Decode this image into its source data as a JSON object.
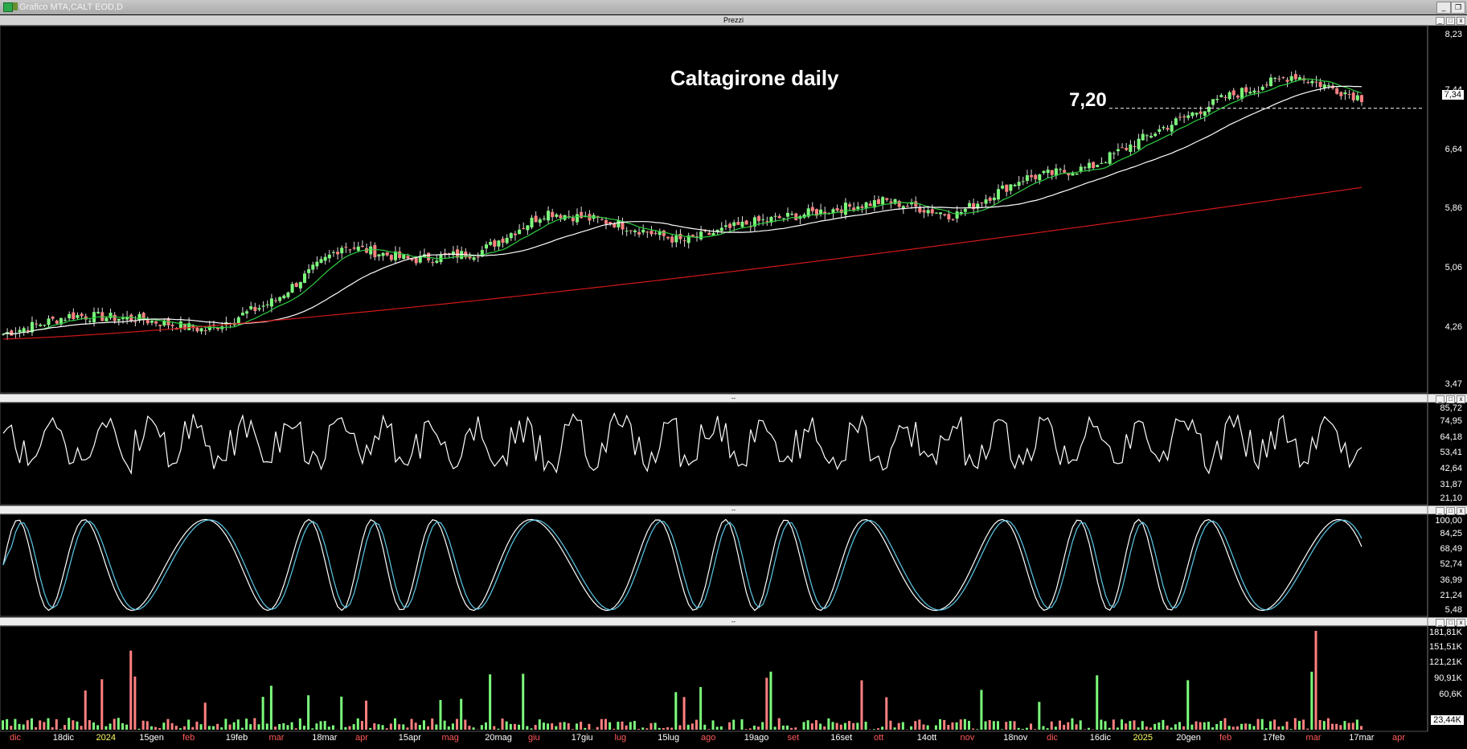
{
  "window": {
    "title": "Grafico MTA,CALT EOD,D"
  },
  "prezzi_panel": {
    "label": "Prezzi",
    "annotation_title": "Caltagirone daily",
    "annotation_level": "7,20",
    "last_price_tag": "7,34",
    "y_ticks": [
      "8,23",
      "7,44",
      "6,64",
      "5,86",
      "5,06",
      "4,26",
      "3,47"
    ]
  },
  "rsi_panel": {
    "separator": "--",
    "y_ticks": [
      "85,72",
      "74,95",
      "64,18",
      "53,41",
      "42,64",
      "31,87",
      "21,10"
    ]
  },
  "stoch_panel": {
    "separator": "--",
    "y_ticks": [
      "100,00",
      "84,25",
      "68,49",
      "52,74",
      "36,99",
      "21,24",
      "5,48"
    ]
  },
  "volume_panel": {
    "separator": "--",
    "y_ticks": [
      "181,81K",
      "151,51K",
      "121,21K",
      "90,91K",
      "60,6K"
    ],
    "last_volume_tag": "23,44K"
  },
  "x_axis": [
    {
      "label": "dic",
      "color": "#ff5a5a"
    },
    {
      "label": "18dic",
      "color": "#ffffff"
    },
    {
      "label": "2024",
      "color": "#ffff66"
    },
    {
      "label": "15gen",
      "color": "#ffffff"
    },
    {
      "label": "feb",
      "color": "#ff5a5a"
    },
    {
      "label": "19feb",
      "color": "#ffffff"
    },
    {
      "label": "mar",
      "color": "#ff5a5a"
    },
    {
      "label": "18mar",
      "color": "#ffffff"
    },
    {
      "label": "apr",
      "color": "#ff5a5a"
    },
    {
      "label": "15apr",
      "color": "#ffffff"
    },
    {
      "label": "mag",
      "color": "#ff5a5a"
    },
    {
      "label": "20mag",
      "color": "#ffffff"
    },
    {
      "label": "giu",
      "color": "#ff5a5a"
    },
    {
      "label": "17giu",
      "color": "#ffffff"
    },
    {
      "label": "lug",
      "color": "#ff5a5a"
    },
    {
      "label": "15lug",
      "color": "#ffffff"
    },
    {
      "label": "ago",
      "color": "#ff5a5a"
    },
    {
      "label": "19ago",
      "color": "#ffffff"
    },
    {
      "label": "set",
      "color": "#ff5a5a"
    },
    {
      "label": "16set",
      "color": "#ffffff"
    },
    {
      "label": "ott",
      "color": "#ff5a5a"
    },
    {
      "label": "14ott",
      "color": "#ffffff"
    },
    {
      "label": "nov",
      "color": "#ff5a5a"
    },
    {
      "label": "18nov",
      "color": "#ffffff"
    },
    {
      "label": "dic",
      "color": "#ff5a5a"
    },
    {
      "label": "16dic",
      "color": "#ffffff"
    },
    {
      "label": "2025",
      "color": "#ffff66"
    },
    {
      "label": "20gen",
      "color": "#ffffff"
    },
    {
      "label": "feb",
      "color": "#ff5a5a"
    },
    {
      "label": "17feb",
      "color": "#ffffff"
    },
    {
      "label": "mar",
      "color": "#ff5a5a"
    },
    {
      "label": "17mar",
      "color": "#ffffff"
    },
    {
      "label": "apr",
      "color": "#ff5a5a"
    }
  ],
  "colors": {
    "up_candle": "#7CFC7C",
    "down_candle": "#ff8080",
    "ma_fast": "#2ecc40",
    "ma_mid": "#ffffff",
    "ma_slow": "#d01818",
    "stoch_k": "#ffffff",
    "stoch_d": "#5bc8e8"
  },
  "chart_data": {
    "type": "candlestick",
    "price_key_points": [
      {
        "x_label": "dic",
        "price": 4.15
      },
      {
        "x_label": "2024",
        "price": 4.4
      },
      {
        "x_label": "feb",
        "price": 4.35
      },
      {
        "x_label": "19feb",
        "price": 4.2
      },
      {
        "x_label": "18mar",
        "price": 4.6
      },
      {
        "x_label": "apr",
        "price": 5.35
      },
      {
        "x_label": "15apr",
        "price": 5.15
      },
      {
        "x_label": "20mag",
        "price": 5.25
      },
      {
        "x_label": "17giu",
        "price": 5.8
      },
      {
        "x_label": "15lug",
        "price": 5.65
      },
      {
        "x_label": "ago",
        "price": 5.4
      },
      {
        "x_label": "19ago",
        "price": 5.65
      },
      {
        "x_label": "16set",
        "price": 5.8
      },
      {
        "x_label": "ott",
        "price": 5.95
      },
      {
        "x_label": "14ott",
        "price": 5.75
      },
      {
        "x_label": "18nov",
        "price": 6.25
      },
      {
        "x_label": "16dic",
        "price": 6.4
      },
      {
        "x_label": "20gen",
        "price": 6.9
      },
      {
        "x_label": "17feb",
        "price": 7.35
      },
      {
        "x_label": "17mar",
        "price": 7.65
      },
      {
        "x_label": "apr",
        "price": 7.34
      }
    ],
    "resistance_level": 7.2,
    "y_range": [
      3.47,
      8.23
    ]
  }
}
